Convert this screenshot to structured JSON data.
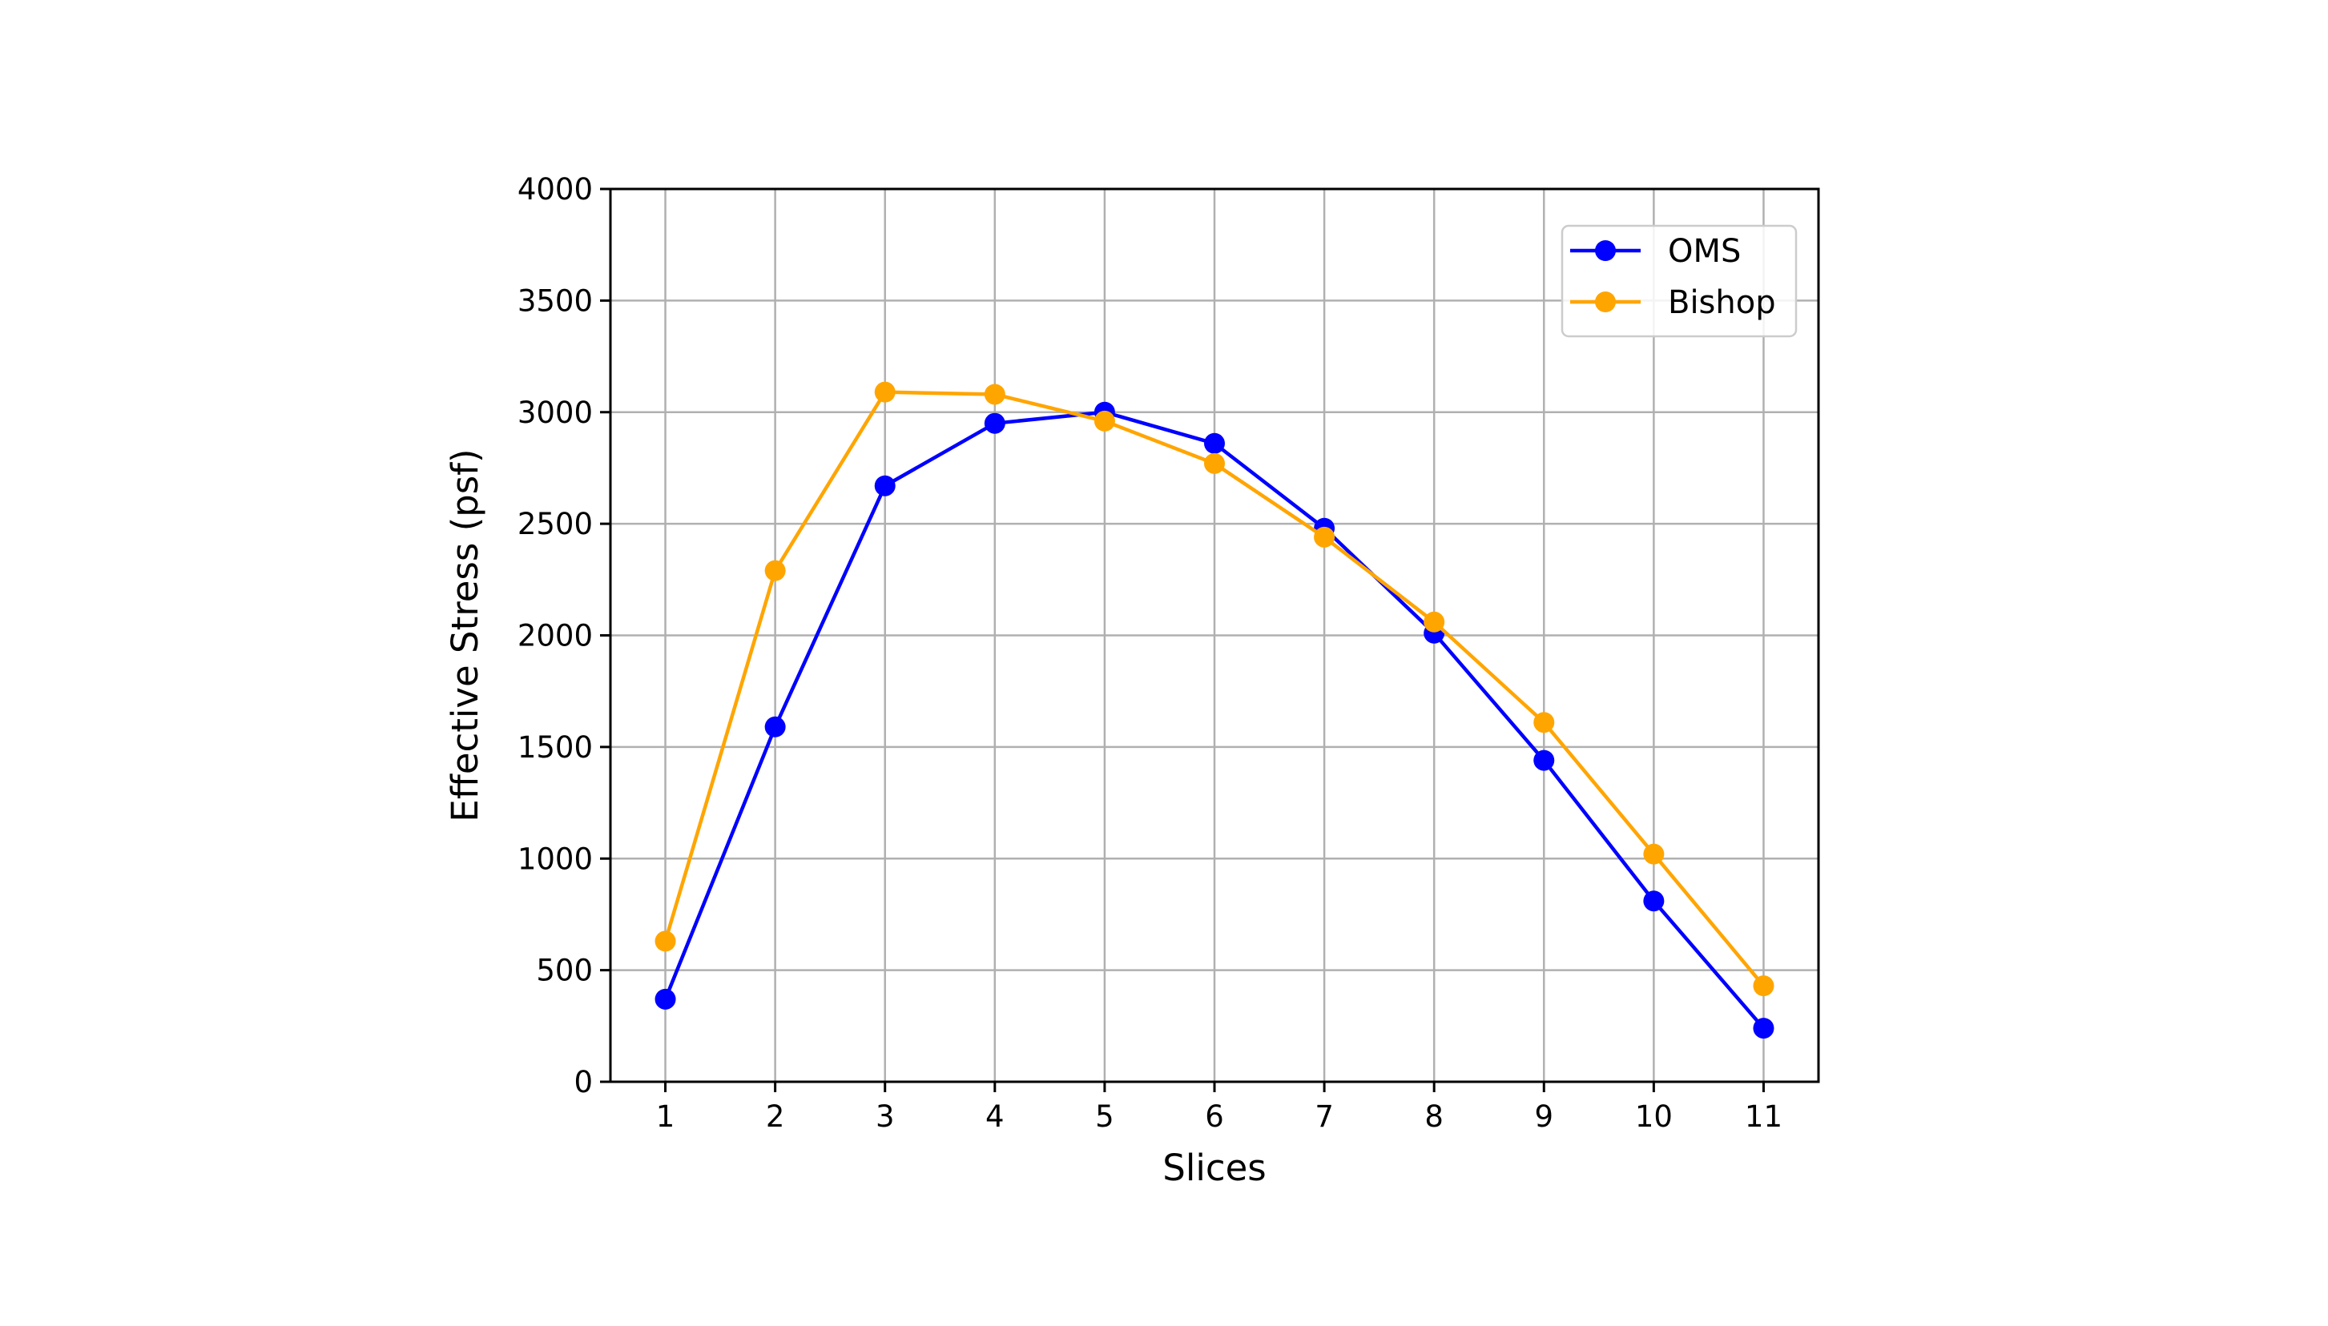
{
  "chart_data": {
    "type": "line",
    "title": "",
    "xlabel": "Slices",
    "ylabel": "Effective Stress (psf)",
    "x": [
      1,
      2,
      3,
      4,
      5,
      6,
      7,
      8,
      9,
      10,
      11
    ],
    "xlim": [
      0.5,
      11.5
    ],
    "ylim": [
      0,
      4000
    ],
    "xticks": [
      "1",
      "2",
      "3",
      "4",
      "5",
      "6",
      "7",
      "8",
      "9",
      "10",
      "11"
    ],
    "yticks": [
      "0",
      "500",
      "1000",
      "1500",
      "2000",
      "2500",
      "3000",
      "3500",
      "4000"
    ],
    "grid": true,
    "legend_position": "top-right",
    "series": [
      {
        "name": "OMS",
        "color": "#0000ff",
        "marker": "circle",
        "values": [
          370,
          1590,
          2670,
          2950,
          3000,
          2860,
          2480,
          2010,
          1440,
          810,
          240
        ]
      },
      {
        "name": "Bishop",
        "color": "#ffa500",
        "marker": "circle",
        "values": [
          630,
          2290,
          3090,
          3080,
          2960,
          2770,
          2440,
          2060,
          1610,
          1020,
          430
        ]
      }
    ]
  }
}
